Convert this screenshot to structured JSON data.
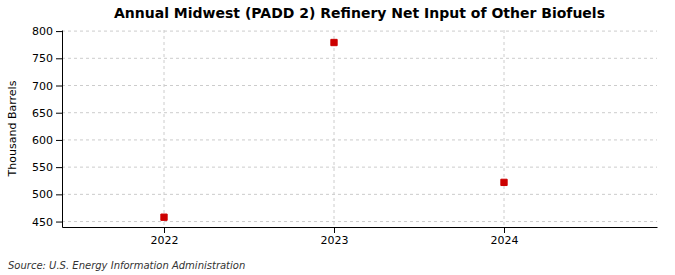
{
  "chart_data": {
    "type": "scatter",
    "title": "Annual Midwest (PADD 2) Refinery Net Input of Other Biofuels",
    "ylabel": "Thousand Barrels",
    "x": [
      2022,
      2023,
      2024
    ],
    "values": [
      458,
      779,
      522
    ],
    "color": "#cc0000",
    "marker": "square",
    "xlim": [
      2021.4,
      2024.9
    ],
    "xticks": [
      2022,
      2023,
      2024
    ],
    "ylim": [
      440,
      802
    ],
    "yticks": [
      450,
      500,
      550,
      600,
      650,
      700,
      750,
      800
    ],
    "grid": true,
    "annotations": [
      "Source: U.S. Energy Information Administration"
    ]
  }
}
